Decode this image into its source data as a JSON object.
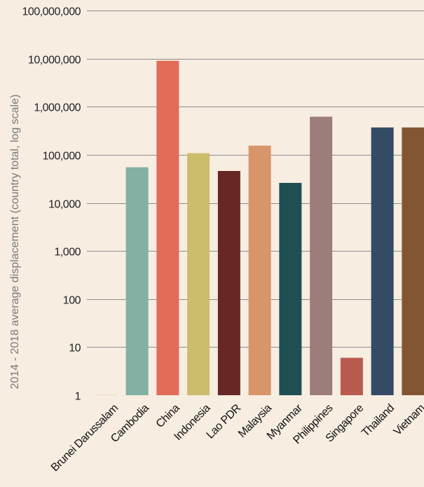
{
  "chart_data": {
    "type": "bar",
    "title": "",
    "xlabel": "",
    "ylabel": "2014 - 2018 average displacement (country total, log scale)",
    "yscale": "log",
    "ylim": [
      1,
      100000000
    ],
    "grid": true,
    "y_ticks": [
      1,
      10,
      100,
      1000,
      10000,
      100000,
      1000000,
      10000000,
      100000000
    ],
    "y_tick_labels": [
      "1",
      "10",
      "100",
      "1,000",
      "10,000",
      "100,000",
      "1,000,000",
      "10,000,000",
      "100,000,000"
    ],
    "categories": [
      "Brunei Darussalam",
      "Cambodia",
      "China",
      "Indonesia",
      "Lao PDR",
      "Malaysia",
      "Myanmar",
      "Philippines",
      "Singapore",
      "Thailand",
      "Vietnam"
    ],
    "values": [
      1,
      55000,
      9000000,
      108000,
      46000,
      155000,
      26000,
      620000,
      6,
      370000,
      370000
    ],
    "colors": [
      "#e9d9c6",
      "#82b0a2",
      "#e36c58",
      "#cbbd6c",
      "#672724",
      "#d8956a",
      "#1f4f53",
      "#9c7d7b",
      "#b95a4f",
      "#344b65",
      "#825533"
    ]
  }
}
